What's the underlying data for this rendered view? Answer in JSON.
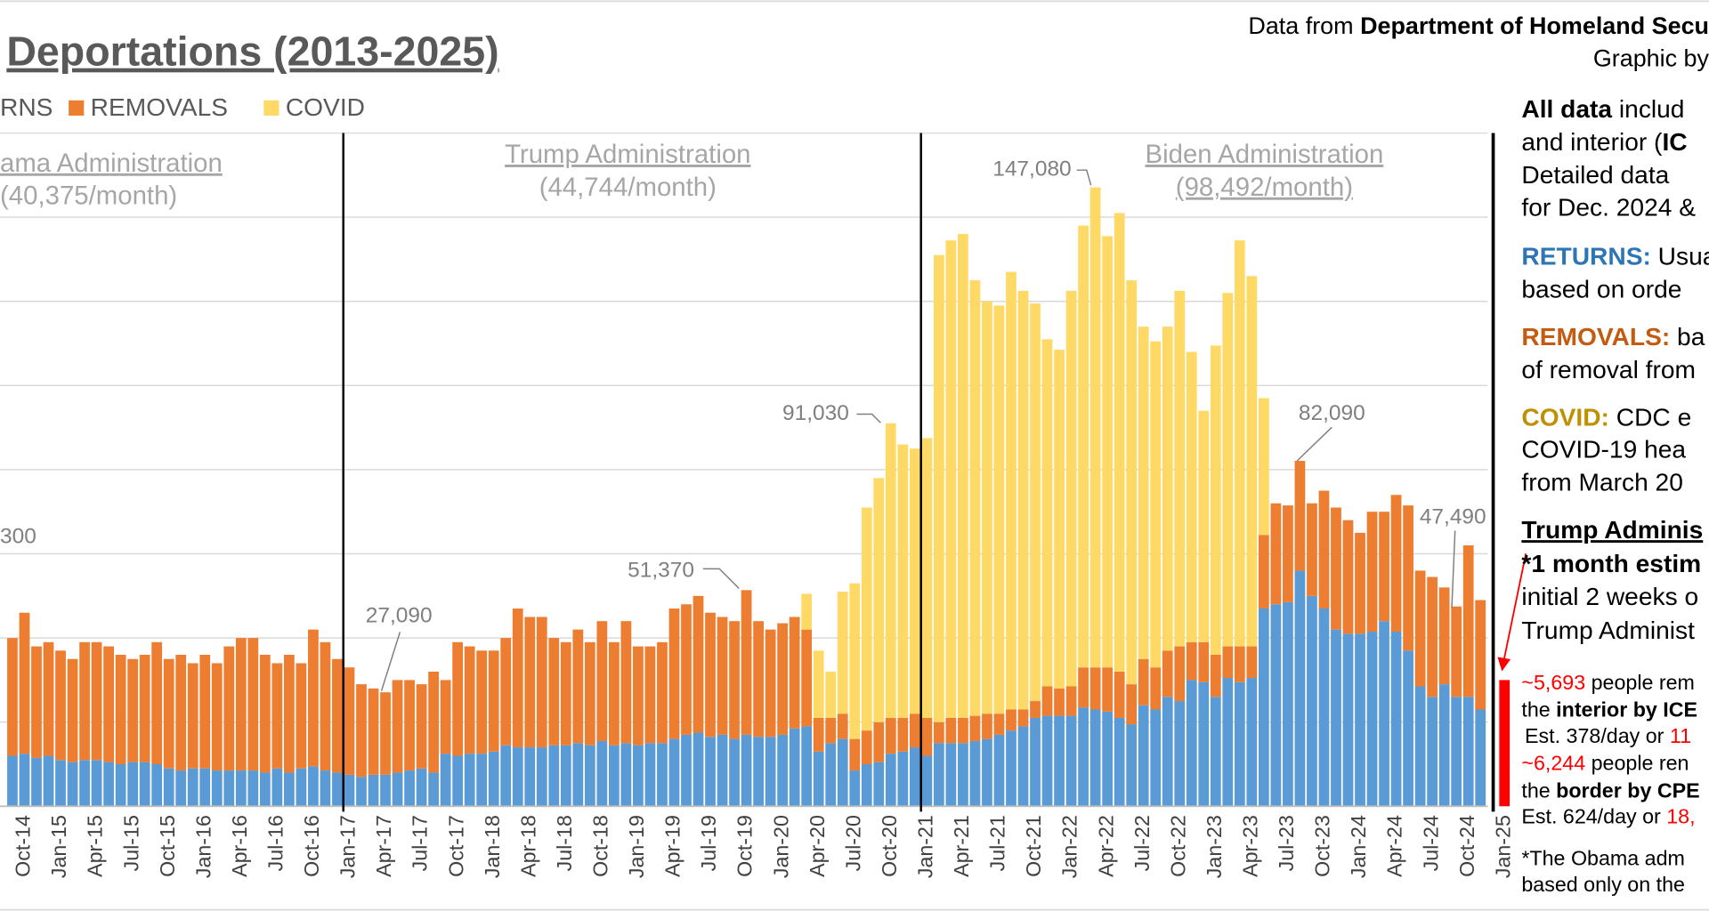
{
  "chart_data": {
    "type": "stacked_bar",
    "title": "Deportations (2013-2025)",
    "categories": [
      null,
      "Oct-14",
      null,
      null,
      "Jan-15",
      null,
      null,
      "Apr-15",
      null,
      null,
      "Jul-15",
      null,
      null,
      "Oct-15",
      null,
      null,
      "Jan-16",
      null,
      null,
      "Apr-16",
      null,
      null,
      "Jul-16",
      null,
      null,
      "Oct-16",
      null,
      null,
      "Jan-17",
      null,
      null,
      "Apr-17",
      null,
      null,
      "Jul-17",
      null,
      null,
      "Oct-17",
      null,
      null,
      "Jan-18",
      null,
      null,
      "Apr-18",
      null,
      null,
      "Jul-18",
      null,
      null,
      "Oct-18",
      null,
      null,
      "Jan-19",
      null,
      null,
      "Apr-19",
      null,
      null,
      "Jul-19",
      null,
      null,
      "Oct-19",
      null,
      null,
      "Jan-20",
      null,
      null,
      "Apr-20",
      null,
      null,
      "Jul-20",
      null,
      null,
      "Oct-20",
      null,
      null,
      "Jan-21",
      null,
      null,
      "Apr-21",
      null,
      null,
      "Jul-21",
      null,
      null,
      "Oct-21",
      null,
      null,
      "Jan-22",
      null,
      null,
      "Apr-22",
      null,
      null,
      "Jul-22",
      null,
      null,
      "Oct-22",
      null,
      null,
      "Jan-23",
      null,
      null,
      "Apr-23",
      null,
      null,
      "Jul-23",
      null,
      null,
      "Oct-23",
      null,
      null,
      "Jan-24",
      null,
      null,
      "Apr-24",
      null,
      null,
      "Jul-24",
      null,
      null,
      "Oct-24",
      null,
      null,
      "Jan-25"
    ],
    "series": [
      {
        "name": "RNS",
        "color": "#5b9bd5",
        "values": [
          12000,
          12500,
          11500,
          12000,
          11000,
          10500,
          11000,
          11000,
          10500,
          10000,
          10500,
          10500,
          10000,
          9000,
          8500,
          9000,
          9000,
          8500,
          8500,
          8500,
          8500,
          8000,
          9000,
          8000,
          9000,
          9500,
          8500,
          8000,
          7500,
          7000,
          7500,
          7500,
          8000,
          8500,
          9000,
          8000,
          12500,
          12000,
          12500,
          12500,
          13000,
          14500,
          14000,
          14000,
          14000,
          14500,
          14500,
          15000,
          14500,
          15500,
          14500,
          15000,
          14500,
          15000,
          15000,
          16000,
          17000,
          17500,
          16500,
          17000,
          16000,
          17000,
          16500,
          16500,
          17000,
          18500,
          19000,
          13000,
          15000,
          16000,
          8500,
          10000,
          10500,
          12500,
          13000,
          14000,
          12000,
          15000,
          15000,
          15000,
          15500,
          16000,
          17000,
          18000,
          19000,
          21000,
          21500,
          21500,
          21500,
          23500,
          23000,
          22500,
          21000,
          19500,
          24000,
          23000,
          26000,
          25000,
          30000,
          29500,
          26000,
          30500,
          29500,
          30500,
          47000,
          48000,
          48500,
          56000,
          50000,
          47000,
          42000,
          41000,
          41000,
          41500,
          44000,
          41500,
          37000,
          28500,
          26000,
          29000,
          26000,
          26000,
          23000,
          null,
          null
        ]
      },
      {
        "name": "REMOVALS",
        "color": "#ed7d31",
        "values": [
          28000,
          33500,
          26500,
          27000,
          26000,
          24500,
          28000,
          28000,
          27500,
          26000,
          24500,
          25500,
          29000,
          26000,
          27500,
          25000,
          27000,
          25500,
          29500,
          31500,
          31500,
          28000,
          25000,
          28000,
          25000,
          32500,
          30500,
          27000,
          25500,
          22000,
          20500,
          19590,
          22000,
          21500,
          20000,
          24000,
          17500,
          27000,
          25500,
          24500,
          24000,
          25500,
          33000,
          31000,
          31000,
          25500,
          24500,
          27000,
          24500,
          28500,
          24500,
          29000,
          23500,
          23000,
          24000,
          31000,
          31000,
          32500,
          29500,
          28000,
          28000,
          34370,
          27500,
          25500,
          26500,
          26500,
          23000,
          8000,
          6000,
          6000,
          7500,
          8000,
          9500,
          8500,
          8000,
          8000,
          9000,
          5000,
          6000,
          6000,
          6000,
          6000,
          5000,
          5000,
          4000,
          4000,
          7000,
          6500,
          7000,
          9500,
          10000,
          10500,
          11000,
          9500,
          11000,
          10000,
          11000,
          13000,
          9000,
          9500,
          10000,
          7500,
          8500,
          7500,
          17500,
          24000,
          23000,
          26090,
          22000,
          28000,
          29000,
          27000,
          24000,
          28500,
          26000,
          32500,
          34500,
          27500,
          28500,
          23000,
          21490,
          36000,
          26000,
          null,
          null
        ]
      },
      {
        "name": "COVID",
        "color": "#ffd966",
        "values": [
          null,
          null,
          null,
          null,
          null,
          null,
          null,
          null,
          null,
          null,
          null,
          null,
          null,
          null,
          null,
          null,
          null,
          null,
          null,
          null,
          null,
          null,
          null,
          null,
          null,
          null,
          null,
          null,
          null,
          null,
          null,
          null,
          null,
          null,
          null,
          null,
          null,
          null,
          null,
          null,
          null,
          null,
          null,
          null,
          null,
          null,
          null,
          null,
          null,
          null,
          null,
          null,
          null,
          null,
          null,
          null,
          null,
          null,
          null,
          null,
          null,
          null,
          null,
          null,
          null,
          null,
          8500,
          16000,
          11000,
          29000,
          37000,
          53000,
          58000,
          70030,
          65000,
          63000,
          66500,
          111000,
          113500,
          115000,
          103500,
          98000,
          97000,
          104000,
          99500,
          94500,
          82500,
          80500,
          94000,
          105000,
          114080,
          102500,
          109000,
          96000,
          79000,
          77500,
          77000,
          84500,
          69000,
          55000,
          73500,
          84000,
          96500,
          88000,
          32500,
          null,
          null,
          null,
          null,
          null,
          null,
          null,
          null,
          null,
          null,
          null,
          null,
          null,
          null,
          null,
          null,
          null,
          null,
          null,
          null
        ]
      },
      {
        "color": "#ff0000",
        "values": [
          null,
          null,
          null,
          null,
          null,
          null,
          null,
          null,
          null,
          null,
          null,
          null,
          null,
          null,
          null,
          null,
          null,
          null,
          null,
          null,
          null,
          null,
          null,
          null,
          null,
          null,
          null,
          null,
          null,
          null,
          null,
          null,
          null,
          null,
          null,
          null,
          null,
          null,
          null,
          null,
          null,
          null,
          null,
          null,
          null,
          null,
          null,
          null,
          null,
          null,
          null,
          null,
          null,
          null,
          null,
          null,
          null,
          null,
          null,
          null,
          null,
          null,
          null,
          null,
          null,
          null,
          null,
          null,
          null,
          null,
          null,
          null,
          null,
          null,
          null,
          null,
          null,
          null,
          null,
          null,
          null,
          null,
          null,
          null,
          null,
          null,
          null,
          null,
          null,
          null,
          null,
          null,
          null,
          null,
          null,
          null,
          null,
          null,
          null,
          null,
          null,
          null,
          null,
          null,
          null,
          null,
          null,
          null,
          null,
          null,
          null,
          null,
          null,
          null,
          null,
          null,
          null,
          null,
          null,
          null,
          null,
          null,
          null,
          null,
          30000
        ]
      }
    ],
    "ylim": [
      0,
      160000
    ],
    "yticks": [
      0,
      20000,
      40000,
      60000,
      80000,
      100000,
      120000,
      140000,
      160000
    ],
    "grid": true,
    "annotations": [
      "300",
      "27,090",
      "51,370",
      "91,030",
      "147,080",
      "82,090",
      "47,490"
    ],
    "administrations": [
      [
        "ama Administration",
        "(40,375/month)"
      ],
      [
        "Trump Administration",
        "(44,744/month)"
      ],
      [
        "Biden Administration",
        "(98,492/month)"
      ]
    ]
  },
  "header": {
    "source": [
      "Data from ",
      "Department of Homeland Secu"
    ],
    "credit": "Graphic by"
  },
  "notes": [
    [
      "All data",
      " includ"
    ],
    [
      "and interior (",
      "IC"
    ],
    [
      "Detailed data"
    ],
    [
      "for Dec. 2024 &"
    ],
    [
      "RETURNS:",
      " Usual"
    ],
    [
      "based on orde"
    ],
    [
      "REMOVALS:",
      " ba"
    ],
    [
      "of removal from"
    ],
    [
      "COVID:",
      " CDC e"
    ],
    [
      "COVID-19 hea"
    ],
    [
      "from March 20"
    ],
    [
      "Trump Adminis"
    ],
    [
      "*1 month estim"
    ],
    [
      "initial 2 weeks o"
    ],
    [
      "Trump Administ"
    ],
    [
      "~5,693",
      " people rem"
    ],
    [
      "the ",
      "interior by ICE"
    ],
    [
      "Est. 378/day or ",
      "11"
    ],
    [
      "~6,244",
      " people ren"
    ],
    [
      "the ",
      "border by CPE"
    ],
    [
      "Est. 624/day or ",
      "18,"
    ],
    [
      "*The Obama adm"
    ],
    [
      "based only on the"
    ]
  ]
}
